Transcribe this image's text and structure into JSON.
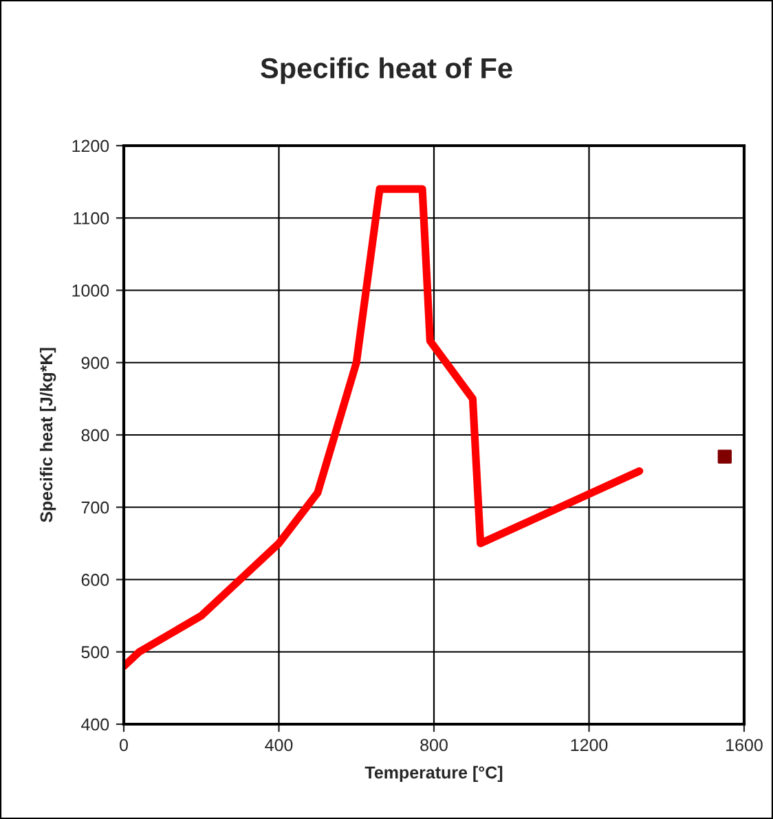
{
  "chart_data": {
    "type": "line",
    "title": "Specific heat of Fe",
    "xlabel": "Temperature [°C]",
    "ylabel": "Specific heat [J/kg*K]",
    "xlim": [
      0,
      1600
    ],
    "xticks": [
      0,
      400,
      800,
      1200,
      1600
    ],
    "ylim": [
      400,
      1200
    ],
    "yticks": [
      400,
      500,
      600,
      700,
      800,
      900,
      1000,
      1100,
      1200
    ],
    "grid": true,
    "marker": "none",
    "line_style": "solid",
    "series": [
      {
        "color": "#ff0000",
        "x": [
          0,
          40,
          200,
          300,
          400,
          500,
          600,
          660,
          770,
          790,
          900,
          920,
          1330
        ],
        "values": [
          480,
          500,
          550,
          600,
          650,
          720,
          900,
          1140,
          1140,
          930,
          850,
          650,
          750
        ]
      },
      {
        "type": "scatter",
        "marker": "square",
        "color": "#800000",
        "x": [
          1550
        ],
        "values": [
          770
        ]
      }
    ]
  }
}
